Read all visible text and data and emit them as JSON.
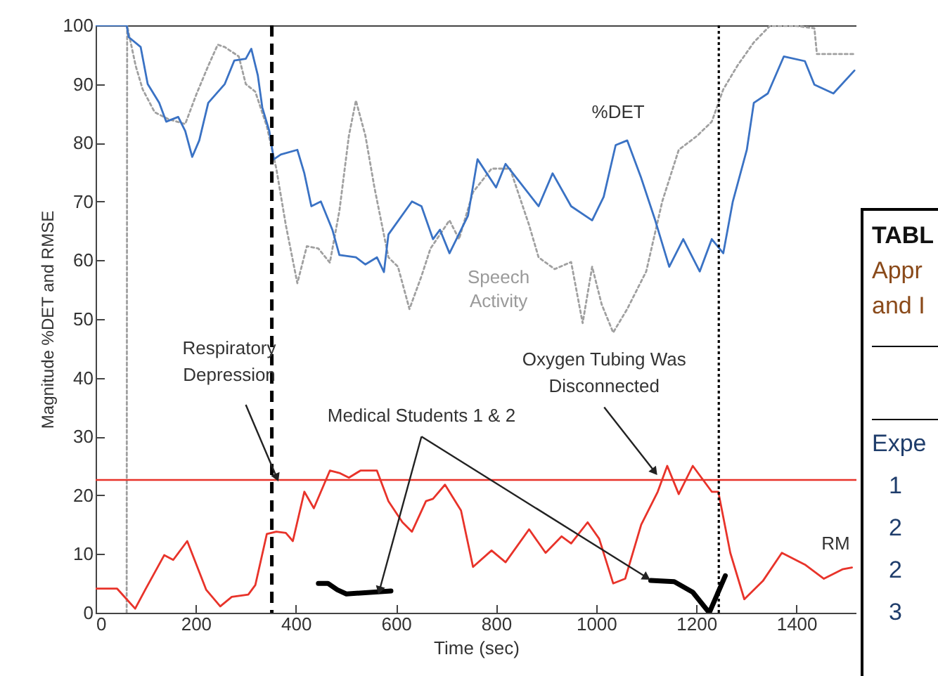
{
  "chart_data": {
    "type": "line",
    "xlabel": "Time (sec)",
    "ylabel": "Magnitude %DET and RMSE",
    "xlim": [
      0,
      1520
    ],
    "xticks": [
      0,
      200,
      400,
      600,
      800,
      1000,
      1200,
      1400
    ],
    "ylim": [
      0,
      100
    ],
    "yticks": [
      0,
      10,
      20,
      30,
      40,
      50,
      60,
      70,
      80,
      90,
      100
    ],
    "grid": false,
    "marker": "none",
    "series": [
      {
        "name": "Speech Activity",
        "color": "#a0a0a0",
        "line_style": "dotted",
        "x": [
          62,
          63,
          66,
          80,
          94,
          118,
          146,
          179,
          202,
          225,
          244,
          258,
          286,
          300,
          319,
          342,
          361,
          380,
          403,
          422,
          445,
          468,
          487,
          506,
          520,
          539,
          557,
          585,
          604,
          627,
          651,
          669,
          707,
          726,
          754,
          791,
          828,
          866,
          885,
          917,
          950,
          973,
          992,
          1011,
          1034,
          1062,
          1100,
          1132,
          1165,
          1202,
          1231,
          1254,
          1282,
          1315,
          1347,
          1399,
          1436,
          1441,
          1516
        ],
        "values": [
          0,
          100,
          98.7,
          93.1,
          89.1,
          85.2,
          84,
          83.2,
          88.4,
          93.1,
          96.7,
          96.3,
          94.7,
          90,
          88.7,
          82.8,
          75.6,
          66,
          56.1,
          62.4,
          62,
          59.6,
          68.4,
          81.2,
          87.2,
          81.2,
          72.4,
          60.5,
          58.9,
          51.7,
          57.3,
          62,
          66.8,
          63.6,
          71.6,
          75.6,
          75.6,
          66,
          60.5,
          58.5,
          59.7,
          49.3,
          58.9,
          52.5,
          47.7,
          51.7,
          58.1,
          70,
          78.8,
          81.2,
          83.6,
          89.1,
          93.1,
          97.1,
          99.9,
          99.9,
          99.5,
          95.1,
          95.1
        ]
      },
      {
        "name": "%DET",
        "color": "#3a72c4",
        "line_style": "solid",
        "x": [
          0,
          62,
          66,
          90,
          104,
          127,
          141,
          165,
          179,
          193,
          207,
          225,
          258,
          277,
          300,
          311,
          324,
          333,
          347,
          356,
          370,
          403,
          417,
          431,
          450,
          473,
          487,
          520,
          539,
          562,
          576,
          585,
          632,
          651,
          674,
          688,
          707,
          744,
          763,
          800,
          819,
          885,
          913,
          950,
          992,
          1015,
          1039,
          1062,
          1090,
          1118,
          1146,
          1174,
          1207,
          1231,
          1254,
          1273,
          1301,
          1315,
          1343,
          1375,
          1417,
          1436,
          1474,
          1516
        ],
        "values": [
          100,
          100,
          98,
          96.3,
          90,
          86.8,
          83.6,
          84.4,
          82,
          77.6,
          80.4,
          86.8,
          90,
          94,
          94.3,
          96,
          91.5,
          86,
          82,
          77.2,
          78,
          78.8,
          74.8,
          69.2,
          70,
          65.2,
          60.9,
          60.5,
          59.3,
          60.5,
          58,
          64.4,
          70,
          69.2,
          63.6,
          65.2,
          61.2,
          67.6,
          77.2,
          72.4,
          76.4,
          69.2,
          74.8,
          69.2,
          66.8,
          70.8,
          79.6,
          80.4,
          74,
          66.8,
          58.9,
          63.6,
          58.1,
          63.6,
          61.2,
          70,
          78.8,
          86.8,
          88.4,
          94.7,
          93.9,
          89.9,
          88.4,
          92.3
        ]
      },
      {
        "name": "RM",
        "color": "#e8332a",
        "line_style": "solid",
        "x": [
          0,
          43,
          62,
          79,
          99,
          137,
          155,
          183,
          221,
          249,
          272,
          305,
          319,
          342,
          361,
          380,
          394,
          417,
          436,
          468,
          487,
          506,
          529,
          562,
          585,
          613,
          632,
          660,
          674,
          698,
          730,
          754,
          791,
          819,
          866,
          899,
          931,
          950,
          983,
          1006,
          1034,
          1058,
          1090,
          1123,
          1142,
          1165,
          1193,
          1231,
          1244,
          1268,
          1296,
          1333,
          1371,
          1417,
          1455,
          1492,
          1511
        ],
        "values": [
          4.1,
          4.1,
          2.3,
          0.7,
          3.9,
          9.8,
          9,
          12.2,
          3.9,
          1.1,
          2.7,
          3.1,
          4.7,
          13.4,
          13.8,
          13.6,
          12.2,
          20.6,
          17.8,
          24.2,
          23.8,
          23,
          24.2,
          24.2,
          19,
          15.4,
          13.8,
          19,
          19.4,
          21.8,
          17.4,
          7.8,
          10.6,
          8.6,
          14.2,
          10.2,
          13,
          11.8,
          15.4,
          12.6,
          5,
          5.8,
          15,
          20.6,
          25,
          20.2,
          25,
          20.6,
          20.6,
          10.2,
          2.3,
          5.4,
          10.2,
          8.2,
          5.8,
          7.4,
          7.7
        ]
      },
      {
        "color": "#000000",
        "line_style": "solid",
        "x": [
          445,
          464,
          483,
          501,
          590
        ],
        "values": [
          5,
          5,
          3.9,
          3.2,
          3.7
        ]
      },
      {
        "color": "#000000",
        "line_style": "solid",
        "x": [
          1109,
          1156,
          1193,
          1226,
          1258
        ],
        "values": [
          5.5,
          5.3,
          3.5,
          0,
          6.3
        ]
      }
    ],
    "ref_lines": [
      {
        "axis": "y",
        "value": 22.6,
        "color": "#e8332a",
        "line_style": "solid"
      },
      {
        "axis": "x",
        "value": 352,
        "color": "#000000",
        "line_style": "dashed"
      },
      {
        "axis": "x",
        "value": 1245,
        "color": "#000000",
        "line_style": "dotted"
      }
    ],
    "annotations": [
      {
        "text": "Respiratory Depression",
        "x": 362,
        "y": 23
      },
      {
        "text": "Medical Students 1 & 2",
        "x": 567,
        "y": 3.8
      },
      {
        "text": "Oxygen Tubing Was Disconnected",
        "x": 1117,
        "y": 24
      },
      "TABL",
      "Appr",
      "and I",
      "Expe",
      "1",
      "2",
      "2",
      "3"
    ]
  }
}
